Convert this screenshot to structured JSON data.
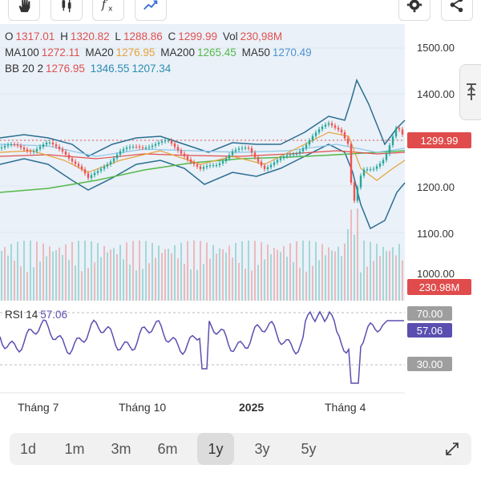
{
  "toolbar": {
    "icons": [
      "hand-icon",
      "candlestick-icon",
      "indicator-icon",
      "compare-icon",
      "settings-icon",
      "share-icon"
    ]
  },
  "ohlc": {
    "o_label": "O",
    "o_value": "1317.01",
    "h_label": "H",
    "h_value": "1320.82",
    "l_label": "L",
    "l_value": "1288.86",
    "c_label": "C",
    "c_value": "1299.99",
    "vol_label": "Vol",
    "vol_value": "230,98M"
  },
  "ma": {
    "ma100_label": "MA100",
    "ma100_value": "1272.11",
    "ma20_label": "MA20",
    "ma20_value": "1276.95",
    "ma200_label": "MA200",
    "ma200_value": "1265.45",
    "ma50_label": "MA50",
    "ma50_value": "1270.49"
  },
  "bb": {
    "label": "BB 20 2",
    "mid": "1276.95",
    "upper": "1346.55",
    "lower": "1207.34"
  },
  "yaxis": {
    "ticks": [
      "1500.00",
      "1400.00",
      "1200.00",
      "1100.00",
      "1000.00"
    ]
  },
  "last_price": "1299.99",
  "last_volume": "230.98M",
  "rsi": {
    "label": "RSI 14",
    "value": "57.06",
    "upper": "70.00",
    "lower": "30.00"
  },
  "xaxis": [
    "Tháng 7",
    "Tháng 10",
    "2025",
    "Tháng 4"
  ],
  "ranges": [
    "1d",
    "1m",
    "3m",
    "6m",
    "1y",
    "3y",
    "5y"
  ],
  "active_range": "1y",
  "colors": {
    "up": "#26a69a",
    "down": "#ef5350",
    "bb": "#2c6e91",
    "ma20": "#e9a13b",
    "ma50": "#8fc6e8",
    "ma100": "#e05050",
    "ma200": "#55b84a",
    "rsi": "#5a4fb0"
  }
}
